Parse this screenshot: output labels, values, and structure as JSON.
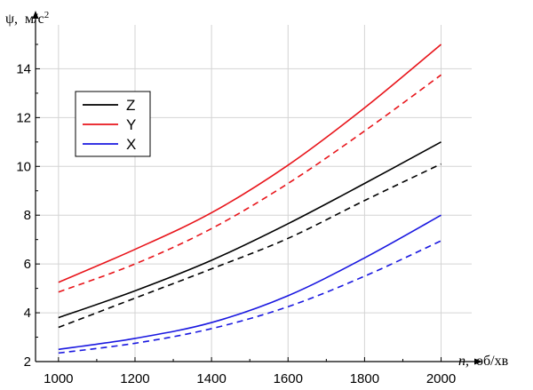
{
  "chart_data": {
    "type": "line",
    "xlabel_var": "n,",
    "xlabel_unit": "об/хв",
    "ylabel_var": "ψ,",
    "ylabel_unit": "м/с",
    "ylabel_unit_sup": "2",
    "xlim": [
      940,
      2080
    ],
    "ylim": [
      2,
      15.8
    ],
    "xticks": [
      1000,
      1200,
      1400,
      1600,
      1800,
      2000
    ],
    "yticks": [
      2,
      4,
      6,
      8,
      10,
      12,
      14
    ],
    "grid": true,
    "legend_position": "upper-left",
    "legend": [
      {
        "label": "Z",
        "color": "#000000"
      },
      {
        "label": "Y",
        "color": "#e8151b"
      },
      {
        "label": "X",
        "color": "#1a18e0"
      }
    ],
    "x": [
      1000,
      1200,
      1400,
      1600,
      1800,
      2000
    ],
    "series": [
      {
        "name": "Y",
        "color": "#e8151b",
        "dash": false,
        "values": [
          5.25,
          6.6,
          8.1,
          10.05,
          12.4,
          15.0
        ]
      },
      {
        "name": "",
        "color": "#e8151b",
        "dash": true,
        "values": [
          4.85,
          6.0,
          7.45,
          9.3,
          11.45,
          13.75
        ]
      },
      {
        "name": "Z",
        "color": "#000000",
        "dash": false,
        "values": [
          3.8,
          4.9,
          6.15,
          7.65,
          9.3,
          11.0
        ]
      },
      {
        "name": "",
        "color": "#000000",
        "dash": true,
        "values": [
          3.4,
          4.6,
          5.8,
          7.05,
          8.6,
          10.1
        ]
      },
      {
        "name": "X",
        "color": "#1a18e0",
        "dash": false,
        "values": [
          2.5,
          2.95,
          3.6,
          4.7,
          6.25,
          8.0
        ]
      },
      {
        "name": "",
        "color": "#1a18e0",
        "dash": true,
        "values": [
          2.35,
          2.75,
          3.35,
          4.25,
          5.5,
          6.95
        ]
      }
    ]
  }
}
